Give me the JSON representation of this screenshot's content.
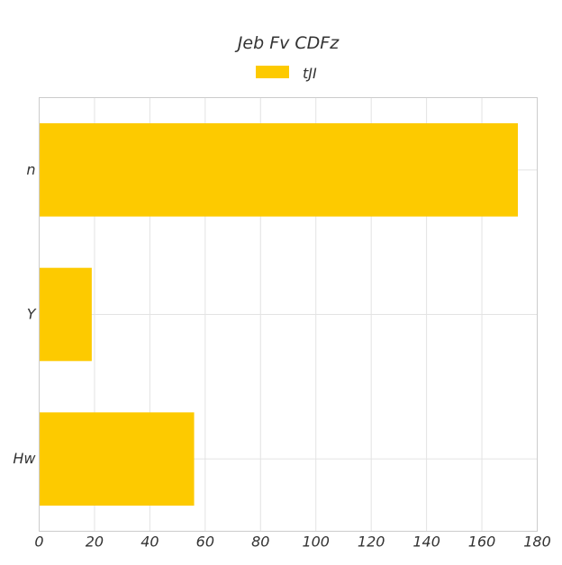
{
  "chart_data": {
    "type": "bar",
    "orientation": "horizontal",
    "title": "Jeb Fv CDFz",
    "xlabel": "",
    "ylabel": "",
    "categories": [
      "n",
      "Y",
      "Hw"
    ],
    "series": [
      {
        "name": "tJI",
        "values": [
          173,
          19,
          56
        ],
        "color": "#fdca00"
      }
    ],
    "xlim": [
      0,
      180
    ],
    "x_ticks": [
      0,
      20,
      40,
      60,
      80,
      100,
      120,
      140,
      160,
      180
    ],
    "grid": true,
    "legend_position": "top-center"
  }
}
